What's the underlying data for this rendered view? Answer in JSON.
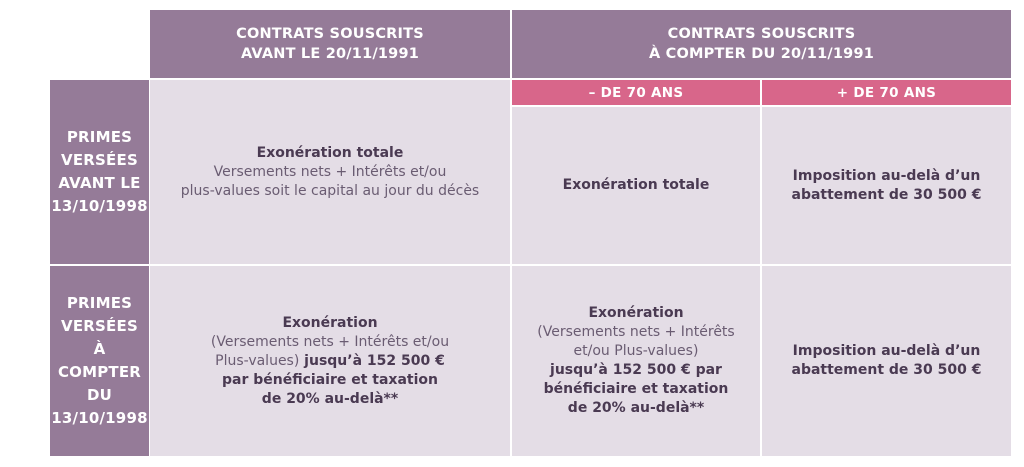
{
  "header": {
    "col1": [
      "CONTRATS SOUSCRITS",
      "AVANT LE 20/11/1991"
    ],
    "col2": [
      "CONTRATS SOUSCRITS",
      "À COMPTER DU 20/11/1991"
    ],
    "sub_under70": "– DE 70 ANS",
    "sub_over70": "+ DE 70 ANS"
  },
  "rows": {
    "row1_label": [
      "PRIMES",
      "VERSÉES",
      "AVANT LE",
      "13/10/1998"
    ],
    "row2_label": [
      "PRIMES",
      "VERSÉES",
      "À COMPTER",
      "DU 13/10/1998"
    ]
  },
  "cells": {
    "r1c1": {
      "title": "Exonération totale",
      "line2": "Versements nets + Intérêts et/ou",
      "line3": "plus-values soit le capital au jour du décès"
    },
    "r1c2": "Exonération totale",
    "r1c3": [
      "Imposition au-delà d’un",
      "abattement de 30 500  €"
    ],
    "r2c1": {
      "title": "Exonération",
      "line2": "(Versements nets + Intérêts et/ou",
      "line3_normal": "Plus-values)",
      "line3_bold": " jusqu’à 152 500  €",
      "line4": "par bénéficiaire et taxation",
      "line5": "de 20% au-delà**"
    },
    "r2c2": {
      "title": "Exonération",
      "line2": "(Versements nets + Intérêts",
      "line3": "et/ou Plus-values)",
      "line4": "jusqu’à 152 500  € par",
      "line5": "bénéficiaire et taxation",
      "line6": "de 20% au-delà**"
    },
    "r2c3": [
      "Imposition au-delà d’un",
      "abattement de 30 500  €"
    ]
  },
  "colors": {
    "header_purple": "#957b98",
    "accent_pink": "#d8668a",
    "cell_bg": "#e4dde6",
    "text_dark": "#4a3a52"
  }
}
